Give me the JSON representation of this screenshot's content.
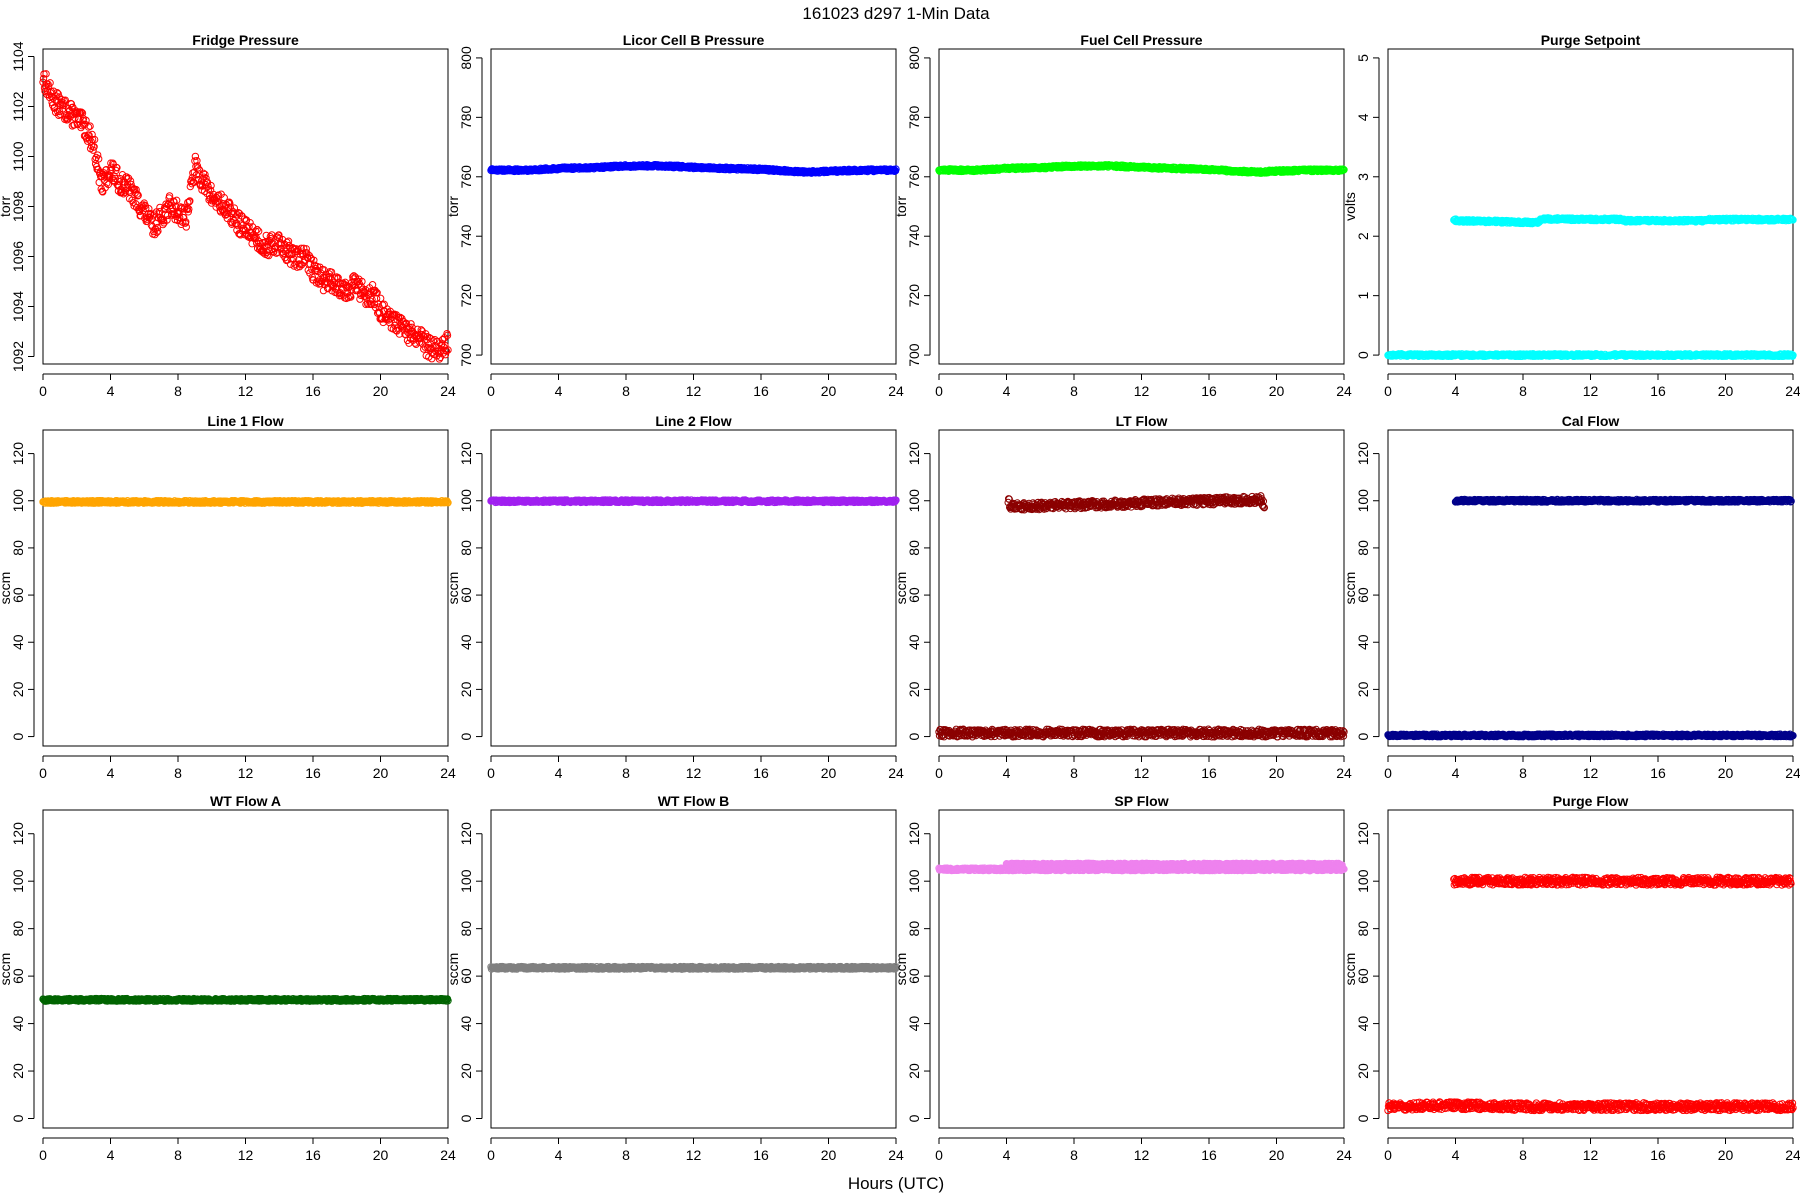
{
  "title": "161023    d297    1-Min Data",
  "xlabel": "Hours (UTC)",
  "chart_data": [
    {
      "type": "scatter",
      "title": "Fridge Pressure",
      "ylabel": "torr",
      "color": "#ff0000",
      "xlim": [
        0,
        24
      ],
      "ylim": [
        1091.7,
        1104.3
      ],
      "xticks": [
        0,
        4,
        8,
        12,
        16,
        20,
        24
      ],
      "yticks": [
        1092,
        1094,
        1096,
        1098,
        1100,
        1102,
        1104
      ],
      "series": [
        {
          "x": [
            0,
            0.5,
            1,
            1.5,
            2,
            2.5,
            3,
            3.5,
            4,
            4.5,
            5,
            5.5,
            6,
            6.5,
            7,
            7.5,
            8,
            8.5,
            9,
            9.5,
            10,
            10.5,
            11,
            11.5,
            12,
            12.5,
            13,
            13.5,
            14,
            14.5,
            15,
            15.5,
            16,
            16.5,
            17,
            17.5,
            18,
            18.5,
            19,
            19.5,
            20,
            20.5,
            21,
            21.5,
            22,
            22.5,
            23,
            23.5,
            24
          ],
          "y": [
            1103.2,
            1102.4,
            1102.0,
            1101.8,
            1101.5,
            1101.2,
            1100.5,
            1098.8,
            1099.5,
            1099.0,
            1098.8,
            1098.3,
            1097.8,
            1097.2,
            1097.6,
            1098.0,
            1097.8,
            1097.6,
            1099.6,
            1099.0,
            1098.4,
            1098.1,
            1097.8,
            1097.4,
            1097.1,
            1096.9,
            1096.5,
            1096.4,
            1096.6,
            1096.2,
            1095.9,
            1096.0,
            1095.5,
            1095.1,
            1095.0,
            1094.9,
            1094.7,
            1094.9,
            1094.5,
            1094.5,
            1093.9,
            1093.4,
            1093.3,
            1093.0,
            1092.8,
            1092.6,
            1092.3,
            1092.3,
            1092.5
          ]
        }
      ]
    },
    {
      "type": "scatter",
      "title": "Licor Cell B Pressure",
      "ylabel": "torr",
      "color": "#0000ff",
      "xlim": [
        0,
        24
      ],
      "ylim": [
        697,
        803
      ],
      "xticks": [
        0,
        4,
        8,
        12,
        16,
        20,
        24
      ],
      "yticks": [
        700,
        720,
        740,
        760,
        780,
        800
      ],
      "series": [
        {
          "x": [
            0,
            2,
            4,
            6,
            8,
            10,
            12,
            14,
            16,
            18,
            19,
            20,
            22,
            24
          ],
          "y": [
            762.3,
            762.2,
            762.8,
            763.1,
            763.6,
            763.7,
            763.2,
            762.8,
            762.5,
            761.8,
            761.6,
            761.9,
            762.2,
            762.2
          ]
        }
      ]
    },
    {
      "type": "scatter",
      "title": "Fuel Cell Pressure",
      "ylabel": "torr",
      "color": "#00ff00",
      "xlim": [
        0,
        24
      ],
      "ylim": [
        697,
        803
      ],
      "xticks": [
        0,
        4,
        8,
        12,
        16,
        20,
        24
      ],
      "yticks": [
        700,
        720,
        740,
        760,
        780,
        800
      ],
      "series": [
        {
          "x": [
            0,
            2,
            4,
            6,
            8,
            10,
            12,
            14,
            16,
            18,
            19,
            20,
            22,
            24
          ],
          "y": [
            762.3,
            762.2,
            762.8,
            763.1,
            763.6,
            763.7,
            763.2,
            762.8,
            762.5,
            761.8,
            761.6,
            761.9,
            762.2,
            762.2
          ]
        }
      ]
    },
    {
      "type": "scatter",
      "title": "Purge Setpoint",
      "ylabel": "volts",
      "color": "#00ffff",
      "xlim": [
        0,
        24
      ],
      "ylim": [
        -0.15,
        5.15
      ],
      "xticks": [
        0,
        4,
        8,
        12,
        16,
        20,
        24
      ],
      "yticks": [
        0,
        1,
        2,
        3,
        4,
        5
      ],
      "series": [
        {
          "x": [
            0,
            4,
            8,
            12,
            16,
            20,
            24
          ],
          "y": [
            0,
            0,
            0,
            0,
            0,
            0,
            0
          ]
        },
        {
          "x": [
            3.9,
            4.1,
            8.9,
            9.0,
            9.2,
            13.9,
            14.1,
            18.9,
            19.0,
            19.3,
            23.9,
            24.0
          ],
          "y": [
            2.28,
            2.26,
            2.23,
            2.27,
            2.29,
            2.28,
            2.26,
            2.26,
            2.28,
            2.28,
            2.28,
            2.27
          ]
        }
      ]
    },
    {
      "type": "scatter",
      "title": "Line 1 Flow",
      "ylabel": "sccm",
      "color": "#ffa500",
      "xlim": [
        0,
        24
      ],
      "ylim": [
        -4,
        130
      ],
      "xticks": [
        0,
        4,
        8,
        12,
        16,
        20,
        24
      ],
      "yticks": [
        0,
        20,
        40,
        60,
        80,
        100,
        120
      ],
      "series": [
        {
          "x": [
            0,
            12,
            24
          ],
          "y": [
            99.5,
            99.5,
            99.5
          ]
        }
      ]
    },
    {
      "type": "scatter",
      "title": "Line 2 Flow",
      "ylabel": "sccm",
      "color": "#a020f0",
      "xlim": [
        0,
        24
      ],
      "ylim": [
        -4,
        130
      ],
      "xticks": [
        0,
        4,
        8,
        12,
        16,
        20,
        24
      ],
      "yticks": [
        0,
        20,
        40,
        60,
        80,
        100,
        120
      ],
      "series": [
        {
          "x": [
            0,
            12,
            24
          ],
          "y": [
            99.8,
            99.8,
            99.8
          ]
        }
      ]
    },
    {
      "type": "scatter",
      "title": "LT Flow",
      "ylabel": "sccm",
      "color": "#8b0000",
      "xlim": [
        0,
        24
      ],
      "ylim": [
        -4,
        130
      ],
      "xticks": [
        0,
        4,
        8,
        12,
        16,
        20,
        24
      ],
      "yticks": [
        0,
        20,
        40,
        60,
        80,
        100,
        120
      ],
      "series": [
        {
          "x": [
            0,
            4,
            8,
            12,
            16,
            20,
            24
          ],
          "y": [
            1.5,
            1.5,
            1.5,
            1.5,
            1.5,
            1.5,
            1.5
          ]
        },
        {
          "x": [
            4.1,
            4.2,
            4.3,
            19.1,
            19.2,
            19.3
          ],
          "y": [
            100.5,
            98.5,
            97.5,
            100.5,
            99,
            97.5
          ]
        }
      ]
    },
    {
      "type": "scatter",
      "title": "Cal Flow",
      "ylabel": "sccm",
      "color": "#00008b",
      "xlim": [
        0,
        24
      ],
      "ylim": [
        -4,
        130
      ],
      "xticks": [
        0,
        4,
        8,
        12,
        16,
        20,
        24
      ],
      "yticks": [
        0,
        20,
        40,
        60,
        80,
        100,
        120
      ],
      "series": [
        {
          "x": [
            0,
            4,
            8,
            12,
            16,
            20,
            24
          ],
          "y": [
            0.5,
            0.5,
            0.5,
            0.5,
            0.5,
            0.5,
            0.5
          ]
        },
        {
          "x": [
            4.0,
            4.3,
            9.0,
            9.4,
            13.8,
            14.2,
            18.8,
            19.2,
            19.5,
            23.9
          ],
          "y": [
            100,
            100,
            100,
            100,
            100,
            100,
            100,
            100,
            100,
            100
          ]
        }
      ]
    },
    {
      "type": "scatter",
      "title": "WT Flow A",
      "ylabel": "sccm",
      "color": "#006400",
      "xlim": [
        0,
        24
      ],
      "ylim": [
        -4,
        130
      ],
      "xticks": [
        0,
        4,
        8,
        12,
        16,
        20,
        24
      ],
      "yticks": [
        0,
        20,
        40,
        60,
        80,
        100,
        120
      ],
      "series": [
        {
          "x": [
            0,
            12,
            24
          ],
          "y": [
            50,
            50,
            50
          ]
        }
      ]
    },
    {
      "type": "scatter",
      "title": "WT Flow B",
      "ylabel": "sccm",
      "color": "#808080",
      "xlim": [
        0,
        24
      ],
      "ylim": [
        -4,
        130
      ],
      "xticks": [
        0,
        4,
        8,
        12,
        16,
        20,
        24
      ],
      "yticks": [
        0,
        20,
        40,
        60,
        80,
        100,
        120
      ],
      "series": [
        {
          "x": [
            0,
            12,
            24
          ],
          "y": [
            63.5,
            63.5,
            63.5
          ]
        }
      ]
    },
    {
      "type": "scatter",
      "title": "SP Flow",
      "ylabel": "sccm",
      "color": "#ee82ee",
      "xlim": [
        0,
        24
      ],
      "ylim": [
        -4,
        130
      ],
      "xticks": [
        0,
        4,
        8,
        12,
        16,
        20,
        24
      ],
      "yticks": [
        0,
        20,
        40,
        60,
        80,
        100,
        120
      ],
      "series": [
        {
          "x": [
            0,
            4,
            8,
            12,
            16,
            20,
            24
          ],
          "y": [
            105,
            105,
            105,
            105,
            105,
            105,
            105
          ]
        },
        {
          "x": [
            4.0,
            4.3,
            9.0,
            9.3,
            13.9,
            14.1,
            18.9,
            19.3,
            23.9
          ],
          "y": [
            107,
            107,
            107,
            107,
            107,
            107,
            107,
            107,
            107
          ]
        }
      ]
    },
    {
      "type": "scatter",
      "title": "Purge Flow",
      "ylabel": "sccm",
      "color": "#ff0000",
      "xlim": [
        0,
        24
      ],
      "ylim": [
        -4,
        130
      ],
      "xticks": [
        0,
        4,
        8,
        12,
        16,
        20,
        24
      ],
      "yticks": [
        0,
        20,
        40,
        60,
        80,
        100,
        120
      ],
      "series": [
        {
          "x": [
            0,
            4,
            8,
            12,
            16,
            20,
            24
          ],
          "y": [
            5,
            5.5,
            5,
            5,
            5,
            5,
            5
          ]
        },
        {
          "x": [
            3.9,
            4.1,
            8.9,
            9.1,
            13.9,
            14.0,
            18.9,
            19.2,
            23.9
          ],
          "y": [
            100,
            100,
            100,
            100,
            100,
            100,
            100,
            100,
            100
          ]
        }
      ]
    }
  ]
}
